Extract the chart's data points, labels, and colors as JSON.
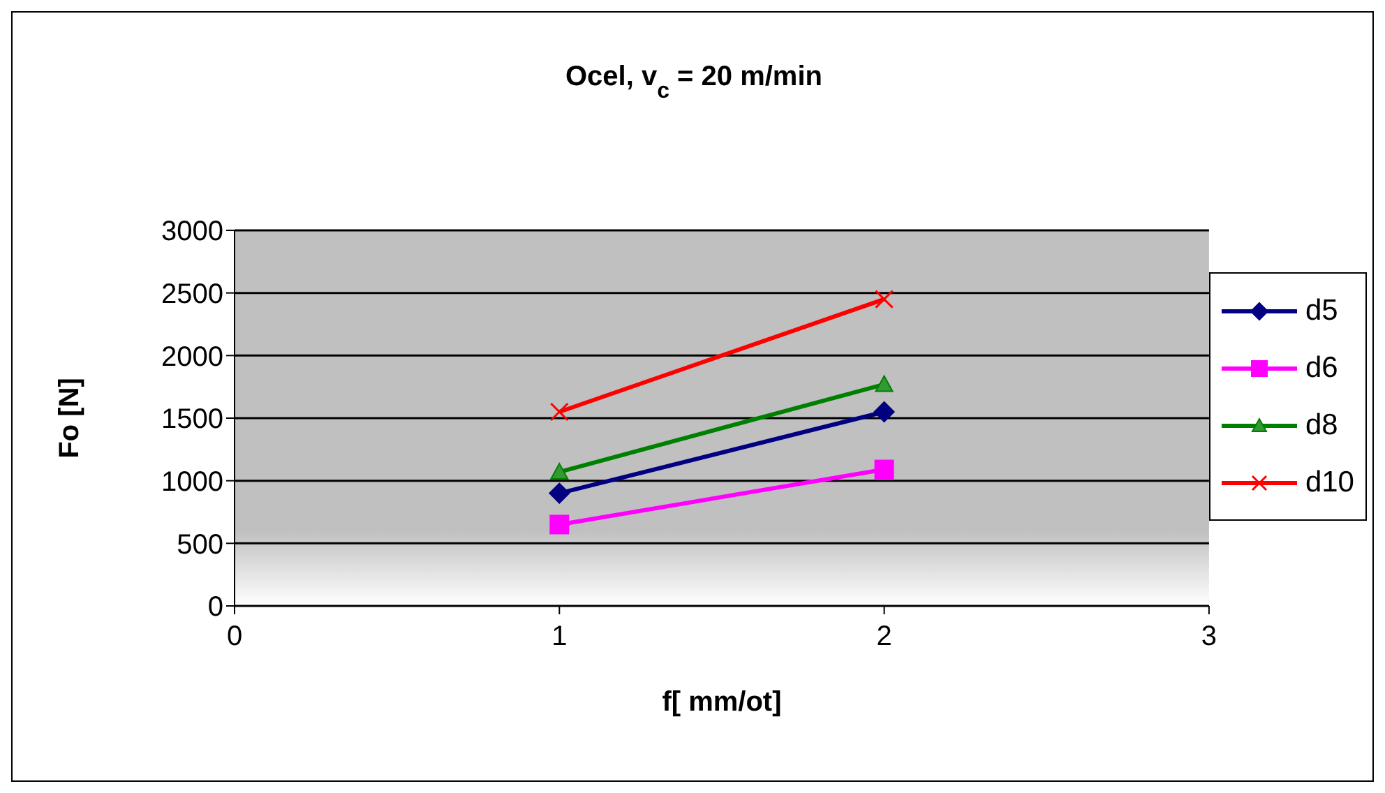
{
  "chart_data": {
    "type": "line",
    "title": "Ocel, v$_{c}$ = 20 m/min",
    "xlabel": "f[ mm/ot]",
    "ylabel": "Fo [N]",
    "x": [
      1,
      2
    ],
    "xlim": [
      0,
      3
    ],
    "xticks": [
      0,
      1,
      2,
      3
    ],
    "ylim": [
      0,
      3000
    ],
    "yticks": [
      0,
      500,
      1000,
      1500,
      2000,
      2500,
      3000
    ],
    "grid": "y",
    "legend": "right",
    "series": [
      {
        "name": "d5",
        "color": "#000080",
        "marker": "diamond",
        "values": [
          900,
          1550
        ]
      },
      {
        "name": "d6",
        "color": "#ff00ff",
        "marker": "square",
        "values": [
          650,
          1090
        ]
      },
      {
        "name": "d8",
        "color": "#008000",
        "marker": "triangle",
        "values": [
          1070,
          1770
        ]
      },
      {
        "name": "d10",
        "color": "#ff0000",
        "marker": "cross",
        "values": [
          1550,
          2450
        ]
      }
    ]
  }
}
